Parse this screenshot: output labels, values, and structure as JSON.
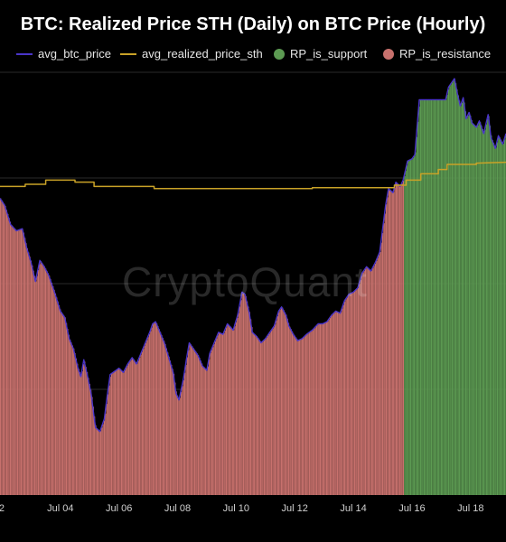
{
  "chart_data": {
    "type": "bar",
    "title": "BTC: Realized Price STH (Daily) on BTC Price (Hourly)",
    "xlabel": "",
    "ylabel": "",
    "watermark": "CryptoQuant",
    "grid": true,
    "legend_position": "top",
    "colors": {
      "avg_btc_price": "#4a35c9",
      "avg_realized_price_sth": "#c9a227",
      "RP_is_support": "#5c9a52",
      "RP_is_resistance": "#c8716d",
      "background": "#000000",
      "gridline": "#2a2a2a"
    },
    "legend": [
      {
        "key": "avg_btc_price",
        "label": "avg_btc_price",
        "style": "line"
      },
      {
        "key": "avg_realized_price_sth",
        "label": "avg_realized_price_sth",
        "style": "line"
      },
      {
        "key": "RP_is_support",
        "label": "RP_is_support",
        "style": "dot"
      },
      {
        "key": "RP_is_resistance",
        "label": "RP_is_resistance",
        "style": "dot"
      }
    ],
    "x_ticks": [
      {
        "label": "2",
        "x": 2.0
      },
      {
        "label": "Jul 04",
        "x": 4.0
      },
      {
        "label": "Jul 06",
        "x": 6.0
      },
      {
        "label": "Jul 08",
        "x": 8.0
      },
      {
        "label": "Jul 10",
        "x": 10.0
      },
      {
        "label": "Jul 12",
        "x": 12.0
      },
      {
        "label": "Jul 14",
        "x": 14.0
      },
      {
        "label": "Jul 16",
        "x": 16.0
      },
      {
        "label": "Jul 18",
        "x": 18.0
      }
    ],
    "xlim": [
      1.94,
      19.21
    ],
    "ylim": [
      0,
      100
    ],
    "gridlines_y": [
      25,
      50,
      75,
      100
    ],
    "support_start_x": 15.72,
    "series": [
      {
        "name": "avg_btc_price",
        "points": [
          [
            1.94,
            70.2
          ],
          [
            2.1,
            68.5
          ],
          [
            2.3,
            64.0
          ],
          [
            2.5,
            62.5
          ],
          [
            2.7,
            63.0
          ],
          [
            2.85,
            58.5
          ],
          [
            3.0,
            55.0
          ],
          [
            3.15,
            50.5
          ],
          [
            3.3,
            55.5
          ],
          [
            3.45,
            54.0
          ],
          [
            3.6,
            52.0
          ],
          [
            3.8,
            48.0
          ],
          [
            4.0,
            43.5
          ],
          [
            4.15,
            42.0
          ],
          [
            4.3,
            37.0
          ],
          [
            4.45,
            34.5
          ],
          [
            4.6,
            30.0
          ],
          [
            4.7,
            28.0
          ],
          [
            4.8,
            32.0
          ],
          [
            4.9,
            29.0
          ],
          [
            5.05,
            24.0
          ],
          [
            5.15,
            18.5
          ],
          [
            5.2,
            16.0
          ],
          [
            5.35,
            15.0
          ],
          [
            5.5,
            18.0
          ],
          [
            5.6,
            23.5
          ],
          [
            5.7,
            28.5
          ],
          [
            5.9,
            29.5
          ],
          [
            6.0,
            30.0
          ],
          [
            6.15,
            29.0
          ],
          [
            6.3,
            31.0
          ],
          [
            6.45,
            32.5
          ],
          [
            6.6,
            31.0
          ],
          [
            6.75,
            33.5
          ],
          [
            6.9,
            36.0
          ],
          [
            7.05,
            38.5
          ],
          [
            7.15,
            40.5
          ],
          [
            7.25,
            41.0
          ],
          [
            7.4,
            38.5
          ],
          [
            7.55,
            36.0
          ],
          [
            7.7,
            32.5
          ],
          [
            7.85,
            29.0
          ],
          [
            7.95,
            24.0
          ],
          [
            8.05,
            22.5
          ],
          [
            8.2,
            27.5
          ],
          [
            8.3,
            32.0
          ],
          [
            8.4,
            36.0
          ],
          [
            8.55,
            34.5
          ],
          [
            8.7,
            33.0
          ],
          [
            8.85,
            30.5
          ],
          [
            9.0,
            29.5
          ],
          [
            9.1,
            33.5
          ],
          [
            9.25,
            36.0
          ],
          [
            9.4,
            38.5
          ],
          [
            9.55,
            38.0
          ],
          [
            9.7,
            40.5
          ],
          [
            9.9,
            39.0
          ],
          [
            10.05,
            42.5
          ],
          [
            10.2,
            48.0
          ],
          [
            10.3,
            47.5
          ],
          [
            10.45,
            43.0
          ],
          [
            10.55,
            38.5
          ],
          [
            10.7,
            37.5
          ],
          [
            10.85,
            36.0
          ],
          [
            11.0,
            37.0
          ],
          [
            11.15,
            38.5
          ],
          [
            11.3,
            40.0
          ],
          [
            11.45,
            43.5
          ],
          [
            11.55,
            44.5
          ],
          [
            11.7,
            42.5
          ],
          [
            11.8,
            40.0
          ],
          [
            11.95,
            38.0
          ],
          [
            12.1,
            36.5
          ],
          [
            12.25,
            37.0
          ],
          [
            12.4,
            38.0
          ],
          [
            12.6,
            39.0
          ],
          [
            12.8,
            40.5
          ],
          [
            12.95,
            40.5
          ],
          [
            13.1,
            41.0
          ],
          [
            13.25,
            42.5
          ],
          [
            13.4,
            43.5
          ],
          [
            13.55,
            43.0
          ],
          [
            13.7,
            46.0
          ],
          [
            13.85,
            47.5
          ],
          [
            14.0,
            48.0
          ],
          [
            14.15,
            49.0
          ],
          [
            14.3,
            52.5
          ],
          [
            14.45,
            54.0
          ],
          [
            14.6,
            53.0
          ],
          [
            14.75,
            55.0
          ],
          [
            14.9,
            57.5
          ],
          [
            15.0,
            63.0
          ],
          [
            15.1,
            68.5
          ],
          [
            15.2,
            72.5
          ],
          [
            15.35,
            71.5
          ],
          [
            15.45,
            74.0
          ],
          [
            15.6,
            73.0
          ],
          [
            15.7,
            74.5
          ],
          [
            15.85,
            79.0
          ],
          [
            16.0,
            79.5
          ],
          [
            16.1,
            80.5
          ],
          [
            16.25,
            93.5
          ],
          [
            16.6,
            93.5
          ],
          [
            17.0,
            93.5
          ],
          [
            17.15,
            93.5
          ],
          [
            17.25,
            96.5
          ],
          [
            17.45,
            98.5
          ],
          [
            17.55,
            95.0
          ],
          [
            17.65,
            92.0
          ],
          [
            17.75,
            94.0
          ],
          [
            17.85,
            89.0
          ],
          [
            17.95,
            90.5
          ],
          [
            18.05,
            88.0
          ],
          [
            18.2,
            87.0
          ],
          [
            18.3,
            88.5
          ],
          [
            18.45,
            85.5
          ],
          [
            18.6,
            90.0
          ],
          [
            18.7,
            84.5
          ],
          [
            18.85,
            82.0
          ],
          [
            18.95,
            85.0
          ],
          [
            19.1,
            83.0
          ],
          [
            19.21,
            85.5
          ]
        ]
      },
      {
        "name": "avg_realized_price_sth",
        "points": [
          [
            1.94,
            73.0
          ],
          [
            2.8,
            73.0
          ],
          [
            2.8,
            73.5
          ],
          [
            3.5,
            73.5
          ],
          [
            3.5,
            74.5
          ],
          [
            4.5,
            74.5
          ],
          [
            4.5,
            74.0
          ],
          [
            5.15,
            74.0
          ],
          [
            5.15,
            73.0
          ],
          [
            7.2,
            73.0
          ],
          [
            7.2,
            72.5
          ],
          [
            12.6,
            72.5
          ],
          [
            12.6,
            72.7
          ],
          [
            15.4,
            72.7
          ],
          [
            15.4,
            73.3
          ],
          [
            15.8,
            73.3
          ],
          [
            15.8,
            74.5
          ],
          [
            16.3,
            74.5
          ],
          [
            16.3,
            76.0
          ],
          [
            16.9,
            76.0
          ],
          [
            16.9,
            77.0
          ],
          [
            17.2,
            77.0
          ],
          [
            17.2,
            78.2
          ],
          [
            18.2,
            78.2
          ],
          [
            18.2,
            78.5
          ],
          [
            19.21,
            78.7
          ]
        ]
      }
    ]
  }
}
